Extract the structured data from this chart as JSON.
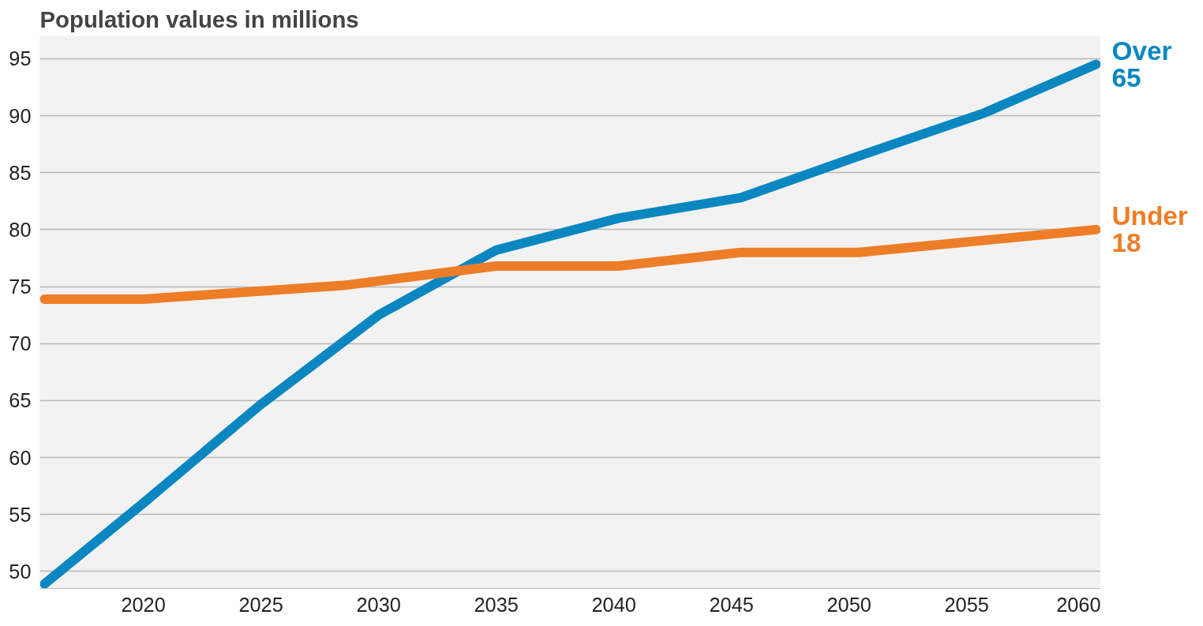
{
  "chart_data": {
    "type": "line",
    "title": "Population values in millions",
    "series": [
      {
        "name": "Over\n65",
        "color": "#0a87c1",
        "x": [
          2015.8,
          2020,
          2024.9,
          2030,
          2035,
          2040.2,
          2045.4,
          2050.2,
          2055.7,
          2060.5
        ],
        "values": [
          48.9,
          56.0,
          64.5,
          72.5,
          78.2,
          81.0,
          82.8,
          86.3,
          90.2,
          94.5
        ]
      },
      {
        "name": "Under\n18",
        "color": "#ee7d27",
        "x": [
          2015.8,
          2020,
          2028.5,
          2035,
          2040.2,
          2045.4,
          2050.4,
          2060.5
        ],
        "values": [
          73.9,
          73.9,
          75.1,
          76.8,
          76.8,
          78.0,
          78.0,
          80.0
        ]
      }
    ],
    "xlim": [
      2015.6,
      2060.7
    ],
    "xticks": [
      2020,
      2025,
      2030,
      2035,
      2040,
      2045,
      2050,
      2055,
      2060
    ],
    "ylim": [
      48.5,
      97
    ],
    "yticks": [
      50,
      55,
      60,
      65,
      70,
      75,
      80,
      85,
      90,
      95
    ],
    "grid": "y",
    "marker": "none",
    "line_style": "solid"
  }
}
